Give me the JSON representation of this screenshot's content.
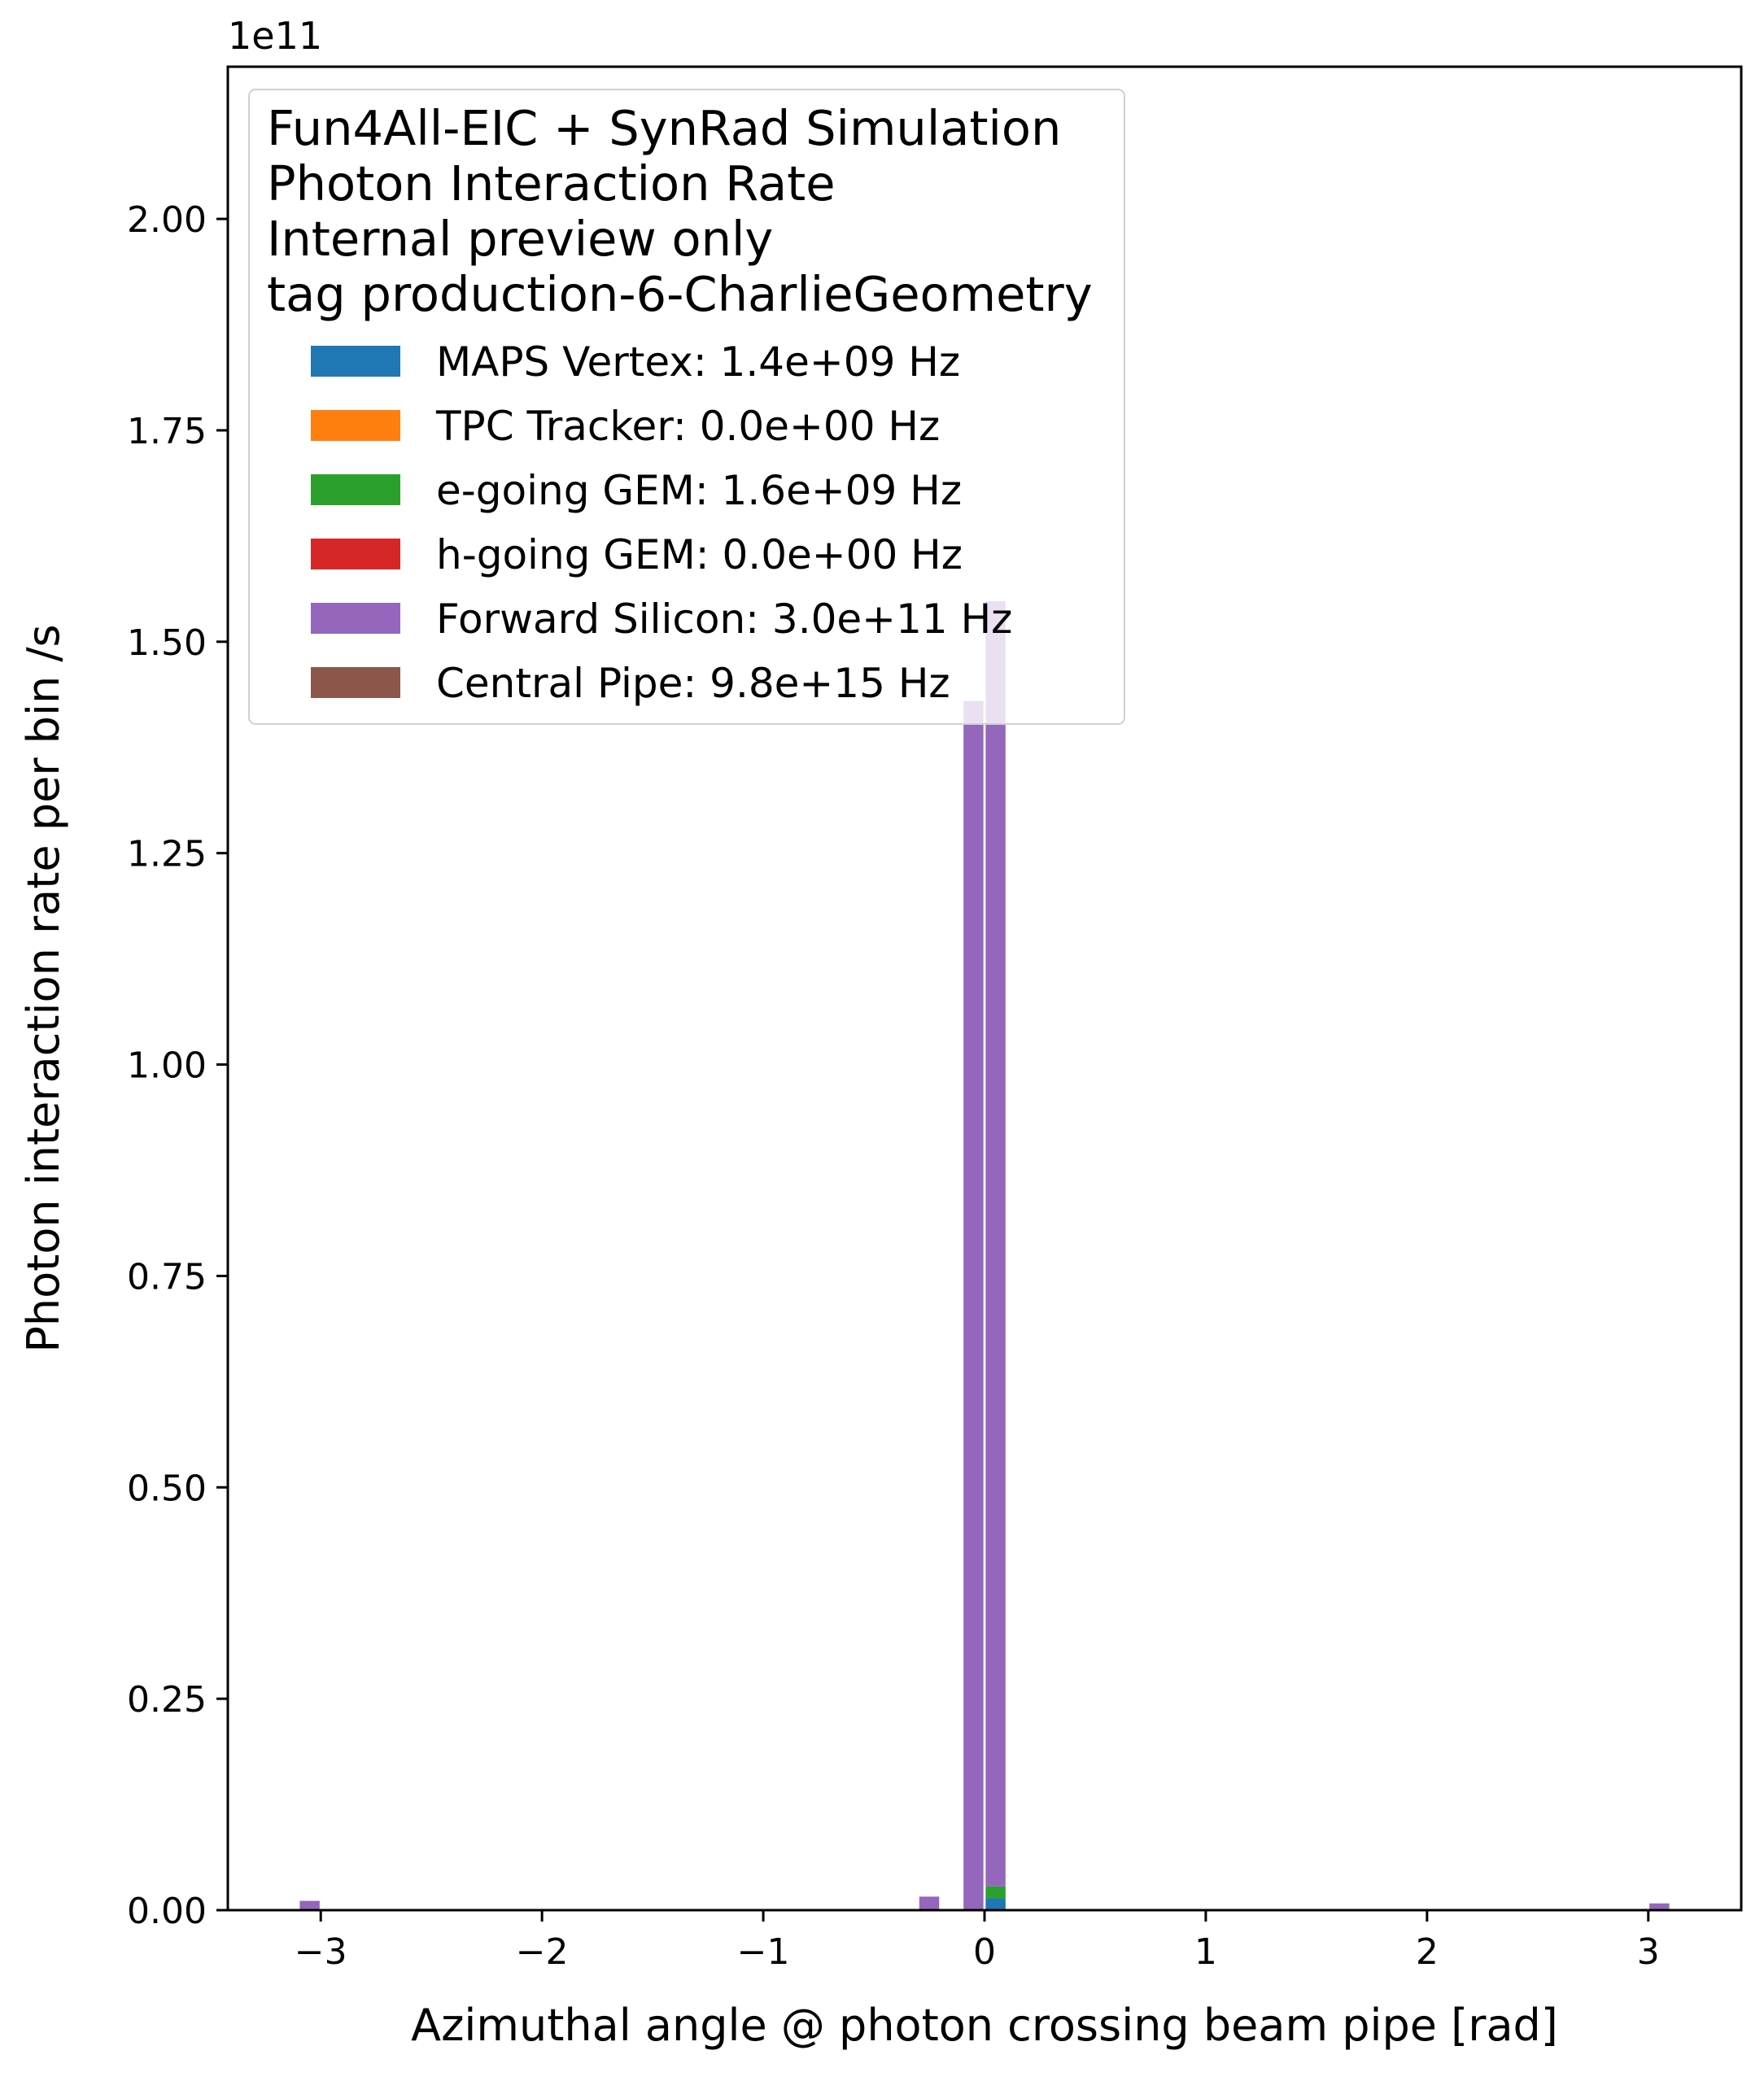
{
  "chart_data": {
    "type": "bar",
    "stacked": true,
    "xlabel": "Azimuthal angle @ photon crossing beam pipe [rad]",
    "ylabel": "Photon interaction rate per bin /s",
    "y_offset_label": "1e11",
    "y_multiplier": 100000000000,
    "xlim": [
      -3.42,
      3.42
    ],
    "ylim": [
      0,
      2.18
    ],
    "xticks": [
      {
        "value": -3,
        "label": "−3"
      },
      {
        "value": -2,
        "label": "−2"
      },
      {
        "value": -1,
        "label": "−1"
      },
      {
        "value": 0,
        "label": "0"
      },
      {
        "value": 1,
        "label": "1"
      },
      {
        "value": 2,
        "label": "2"
      },
      {
        "value": 3,
        "label": "3"
      }
    ],
    "yticks": [
      {
        "value": 0.0,
        "label": "0.00"
      },
      {
        "value": 0.25,
        "label": "0.25"
      },
      {
        "value": 0.5,
        "label": "0.50"
      },
      {
        "value": 0.75,
        "label": "0.75"
      },
      {
        "value": 1.0,
        "label": "1.00"
      },
      {
        "value": 1.25,
        "label": "1.25"
      },
      {
        "value": 1.5,
        "label": "1.50"
      },
      {
        "value": 1.75,
        "label": "1.75"
      },
      {
        "value": 2.0,
        "label": "2.00"
      }
    ],
    "bin_width": 0.1,
    "x": [
      -3.05,
      -0.25,
      -0.05,
      0.05,
      3.05
    ],
    "series": [
      {
        "name": "MAPS Vertex: 1.4e+09 Hz",
        "color": "#1f77b4",
        "values": [
          0,
          0,
          0,
          0.014,
          0
        ]
      },
      {
        "name": "TPC Tracker: 0.0e+00 Hz",
        "color": "#ff7f0e",
        "values": [
          0,
          0,
          0,
          0,
          0
        ]
      },
      {
        "name": "e-going GEM: 1.6e+09 Hz",
        "color": "#2ca02c",
        "values": [
          0,
          0,
          0,
          0.014,
          0
        ]
      },
      {
        "name": "h-going GEM: 0.0e+00 Hz",
        "color": "#d62728",
        "values": [
          0,
          0,
          0,
          0,
          0
        ]
      },
      {
        "name": "Forward Silicon: 3.0e+11 Hz",
        "color": "#9467bd",
        "values": [
          0.011,
          0.016,
          1.43,
          1.52,
          0.008
        ]
      },
      {
        "name": "Central Pipe: 9.8e+15 Hz",
        "color": "#8c564b",
        "values": [
          0,
          0,
          0,
          0,
          0
        ]
      }
    ],
    "legend": {
      "placement": "upper-left",
      "title_lines": [
        "Fun4All-EIC + SynRad Simulation",
        "Photon Interaction Rate",
        "Internal preview only",
        "tag production-6-CharlieGeometry"
      ]
    },
    "grid": false
  }
}
